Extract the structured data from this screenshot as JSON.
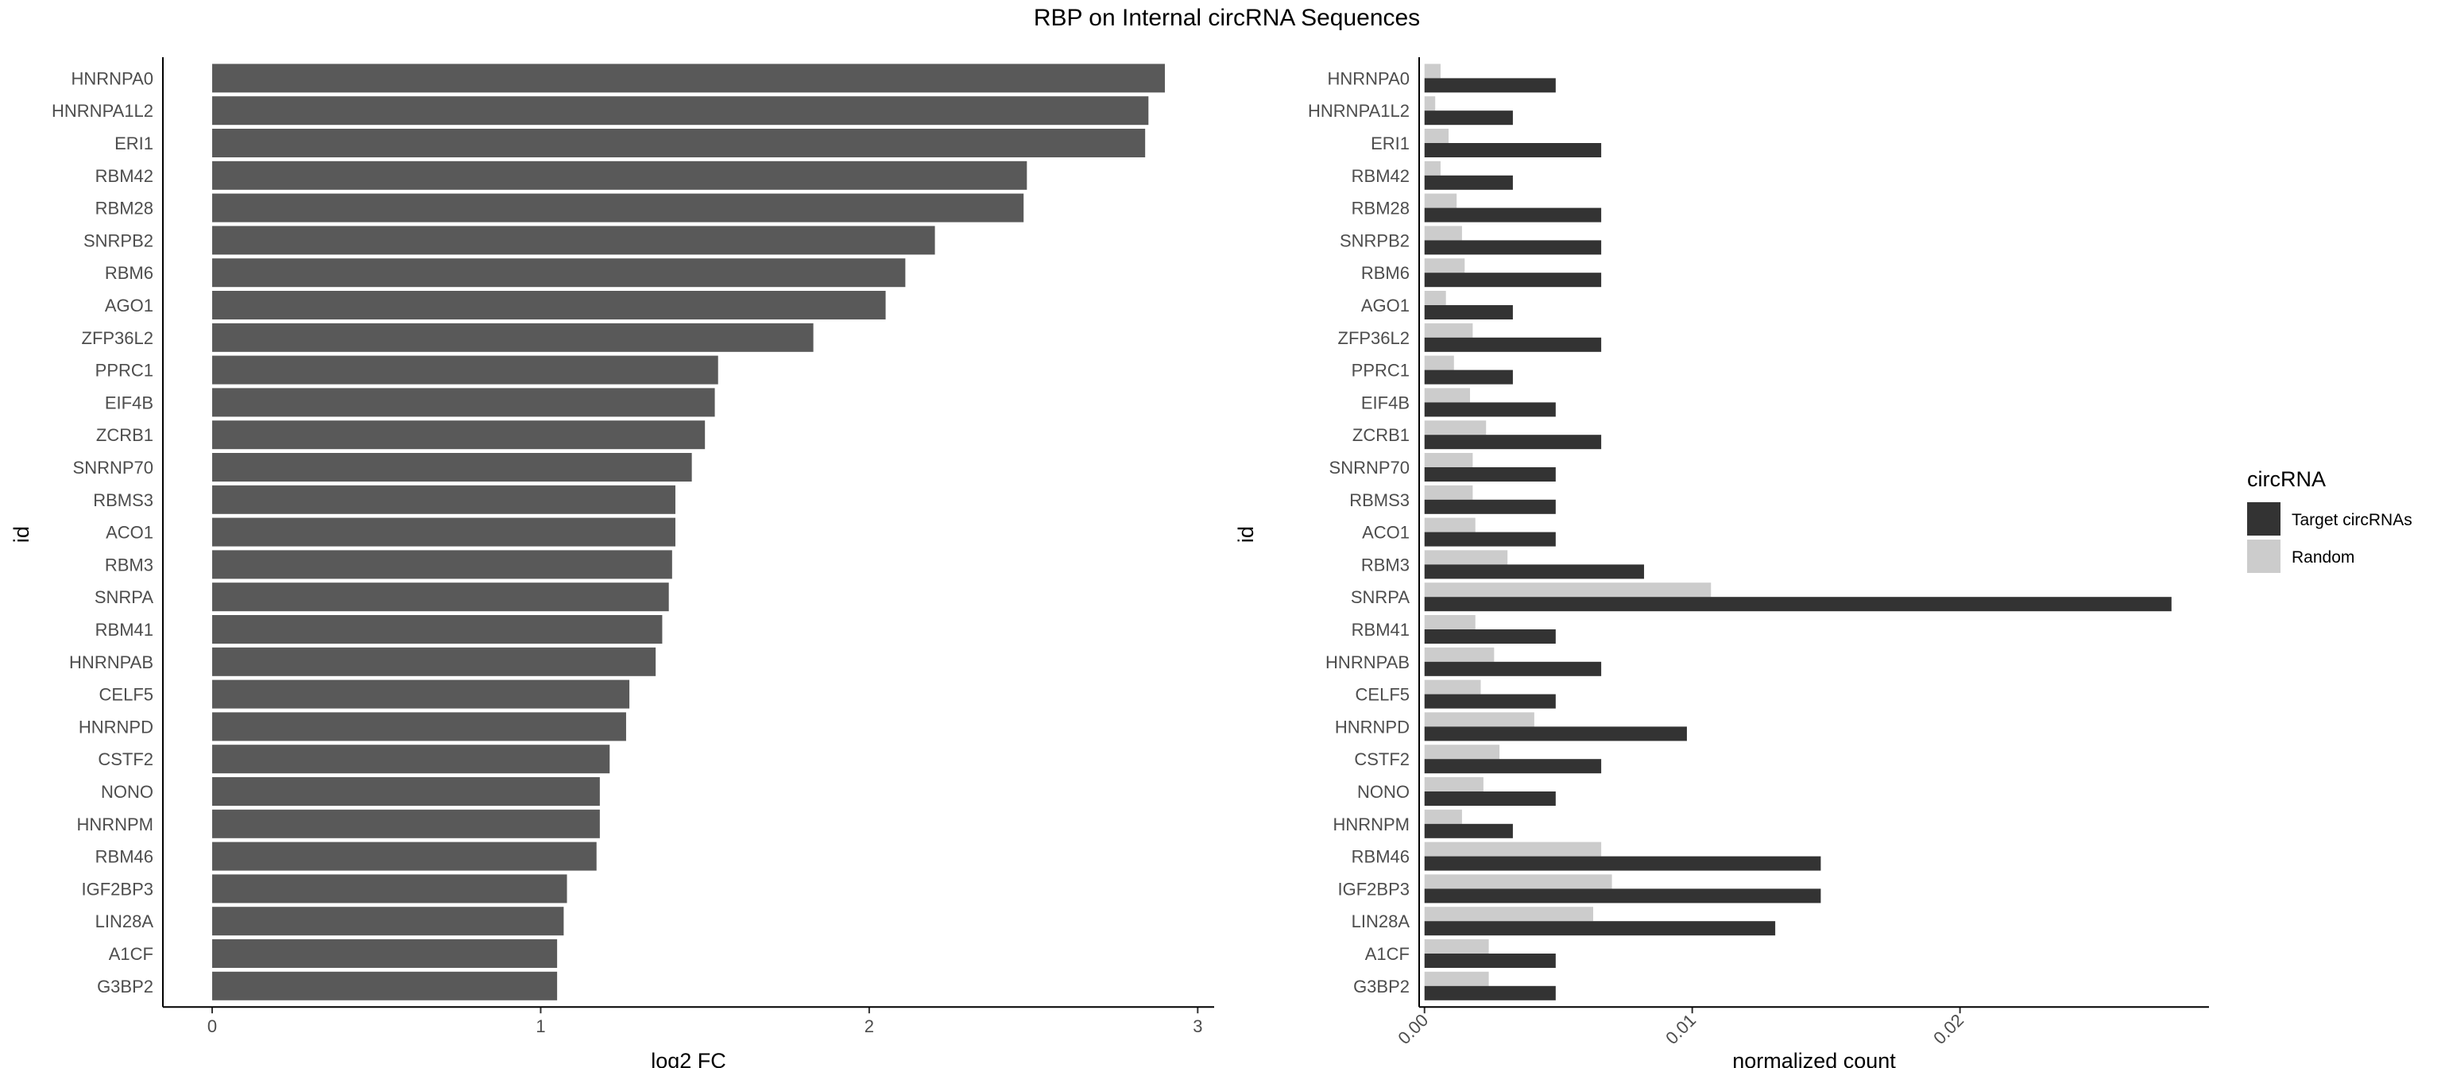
{
  "title": "RBP on Internal circRNA Sequences",
  "chart_data": [
    {
      "type": "bar",
      "orientation": "horizontal",
      "categories": [
        "HNRNPA0",
        "HNRNPA1L2",
        "ERI1",
        "RBM42",
        "RBM28",
        "SNRPB2",
        "RBM6",
        "AGO1",
        "ZFP36L2",
        "PPRC1",
        "EIF4B",
        "ZCRB1",
        "SNRNP70",
        "RBMS3",
        "ACO1",
        "RBM3",
        "SNRPA",
        "RBM41",
        "HNRNPAB",
        "CELF5",
        "HNRNPD",
        "CSTF2",
        "NONO",
        "HNRNPM",
        "RBM46",
        "IGF2BP3",
        "LIN28A",
        "A1CF",
        "G3BP2"
      ],
      "values": [
        2.9,
        2.85,
        2.84,
        2.48,
        2.47,
        2.2,
        2.11,
        2.05,
        1.83,
        1.54,
        1.53,
        1.5,
        1.46,
        1.41,
        1.41,
        1.4,
        1.39,
        1.37,
        1.35,
        1.27,
        1.26,
        1.21,
        1.18,
        1.18,
        1.17,
        1.08,
        1.07,
        1.05,
        1.05
      ],
      "xlabel": "log2 FC",
      "ylabel": "id",
      "xlim": [
        -0.15,
        3.05
      ],
      "xticks": [
        "0",
        "1",
        "2",
        "3"
      ],
      "bar_color": "#595959",
      "grid": false
    },
    {
      "type": "bar",
      "orientation": "horizontal",
      "grouped": true,
      "categories": [
        "HNRNPA0",
        "HNRNPA1L2",
        "ERI1",
        "RBM42",
        "RBM28",
        "SNRPB2",
        "RBM6",
        "AGO1",
        "ZFP36L2",
        "PPRC1",
        "EIF4B",
        "ZCRB1",
        "SNRNP70",
        "RBMS3",
        "ACO1",
        "RBM3",
        "SNRPA",
        "RBM41",
        "HNRNPAB",
        "CELF5",
        "HNRNPD",
        "CSTF2",
        "NONO",
        "HNRNPM",
        "RBM46",
        "IGF2BP3",
        "LIN28A",
        "A1CF",
        "G3BP2"
      ],
      "series": [
        {
          "name": "Target circRNAs",
          "color": "#333333",
          "values": [
            0.0049,
            0.0033,
            0.0066,
            0.0033,
            0.0066,
            0.0066,
            0.0066,
            0.0033,
            0.0066,
            0.0033,
            0.0049,
            0.0066,
            0.0049,
            0.0049,
            0.0049,
            0.0082,
            0.0279,
            0.0049,
            0.0066,
            0.0049,
            0.0098,
            0.0066,
            0.0049,
            0.0033,
            0.0148,
            0.0148,
            0.0131,
            0.0049,
            0.0049
          ]
        },
        {
          "name": "Random",
          "color": "#cccccc",
          "values": [
            0.0006,
            0.0004,
            0.0009,
            0.0006,
            0.0012,
            0.0014,
            0.0015,
            0.0008,
            0.0018,
            0.0011,
            0.0017,
            0.0023,
            0.0018,
            0.0018,
            0.0019,
            0.0031,
            0.0107,
            0.0019,
            0.0026,
            0.0021,
            0.0041,
            0.0028,
            0.0022,
            0.0014,
            0.0066,
            0.007,
            0.0063,
            0.0024,
            0.0024
          ]
        }
      ],
      "xlabel": "normalized count",
      "ylabel": "id",
      "xlim": [
        -0.0002,
        0.0293
      ],
      "xticks": [
        "0.00",
        "0.01",
        "0.02"
      ],
      "legend_title": "circRNA",
      "legend_position": "right",
      "grid": false
    }
  ]
}
